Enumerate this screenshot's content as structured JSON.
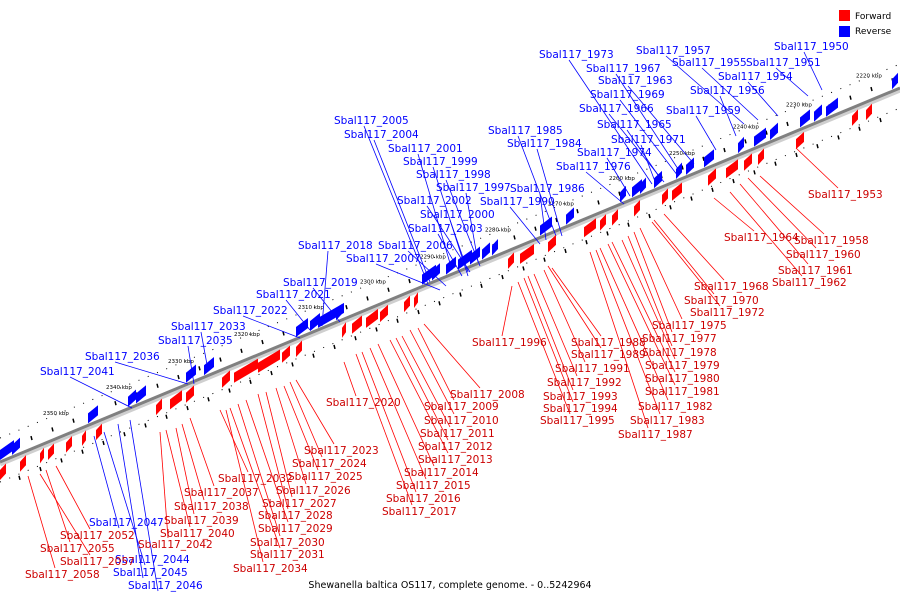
{
  "caption": "Shewanella baltica OS117, complete genome. - 0..5242964",
  "legend": [
    {
      "label": "Forward",
      "color": "#ff0000"
    },
    {
      "label": "Reverse",
      "color": "#0000ff"
    }
  ],
  "colors": {
    "forward": "#ff0000",
    "reverse": "#0000ff",
    "axis": "#808080"
  },
  "ticks": [
    "2220 kbp",
    "2230 kbp",
    "2240 kbp",
    "2250 kbp",
    "2260 kbp",
    "2270 kbp",
    "2280 kbp",
    "2290 kbp",
    "2300 kbp",
    "2310 kbp",
    "2320 kbp",
    "2330 kbp",
    "2340 kbp",
    "2350 kbp"
  ],
  "reverse_labels": [
    "Sbal117_1950",
    "Sbal117_1951",
    "Sbal117_1954",
    "Sbal117_1955",
    "Sbal117_1957",
    "Sbal117_1956",
    "Sbal117_1959",
    "Sbal117_1963",
    "Sbal117_1967",
    "Sbal117_1973",
    "Sbal117_1969",
    "Sbal117_1966",
    "Sbal117_1965",
    "Sbal117_1971",
    "Sbal117_1974",
    "Sbal117_1976",
    "Sbal117_1985",
    "Sbal117_1984",
    "Sbal117_1986",
    "Sbal117_1990",
    "Sbal117_2005",
    "Sbal117_2004",
    "Sbal117_2001",
    "Sbal117_1999",
    "Sbal117_1998",
    "Sbal117_1997",
    "Sbal117_2002",
    "Sbal117_2000",
    "Sbal117_2003",
    "Sbal117_2018",
    "Sbal117_2006",
    "Sbal117_2007",
    "Sbal117_2019",
    "Sbal117_2021",
    "Sbal117_2022",
    "Sbal117_2033",
    "Sbal117_2035",
    "Sbal117_2036",
    "Sbal117_2041",
    "Sbal117_2047",
    "Sbal117_2044",
    "Sbal117_2045",
    "Sbal117_2046"
  ],
  "forward_labels": [
    "Sbal117_1953",
    "Sbal117_1958",
    "Sbal117_1960",
    "Sbal117_1961",
    "Sbal117_1962",
    "Sbal117_1964",
    "Sbal117_1968",
    "Sbal117_1970",
    "Sbal117_1972",
    "Sbal117_1975",
    "Sbal117_1977",
    "Sbal117_1978",
    "Sbal117_1979",
    "Sbal117_1980",
    "Sbal117_1981",
    "Sbal117_1982",
    "Sbal117_1983",
    "Sbal117_1987",
    "Sbal117_1988",
    "Sbal117_1989",
    "Sbal117_1991",
    "Sbal117_1992",
    "Sbal117_1993",
    "Sbal117_1994",
    "Sbal117_1995",
    "Sbal117_1996",
    "Sbal117_2008",
    "Sbal117_2009",
    "Sbal117_2010",
    "Sbal117_2011",
    "Sbal117_2012",
    "Sbal117_2013",
    "Sbal117_2014",
    "Sbal117_2015",
    "Sbal117_2016",
    "Sbal117_2017",
    "Sbal117_2020",
    "Sbal117_2023",
    "Sbal117_2024",
    "Sbal117_2025",
    "Sbal117_2026",
    "Sbal117_2027",
    "Sbal117_2028",
    "Sbal117_2029",
    "Sbal117_2030",
    "Sbal117_2031",
    "Sbal117_2034",
    "Sbal117_2032",
    "Sbal117_2037",
    "Sbal117_2038",
    "Sbal117_2039",
    "Sbal117_2040",
    "Sbal117_2042",
    "Sbal117_2052",
    "Sbal117_2055",
    "Sbal117_2057",
    "Sbal117_2058"
  ]
}
